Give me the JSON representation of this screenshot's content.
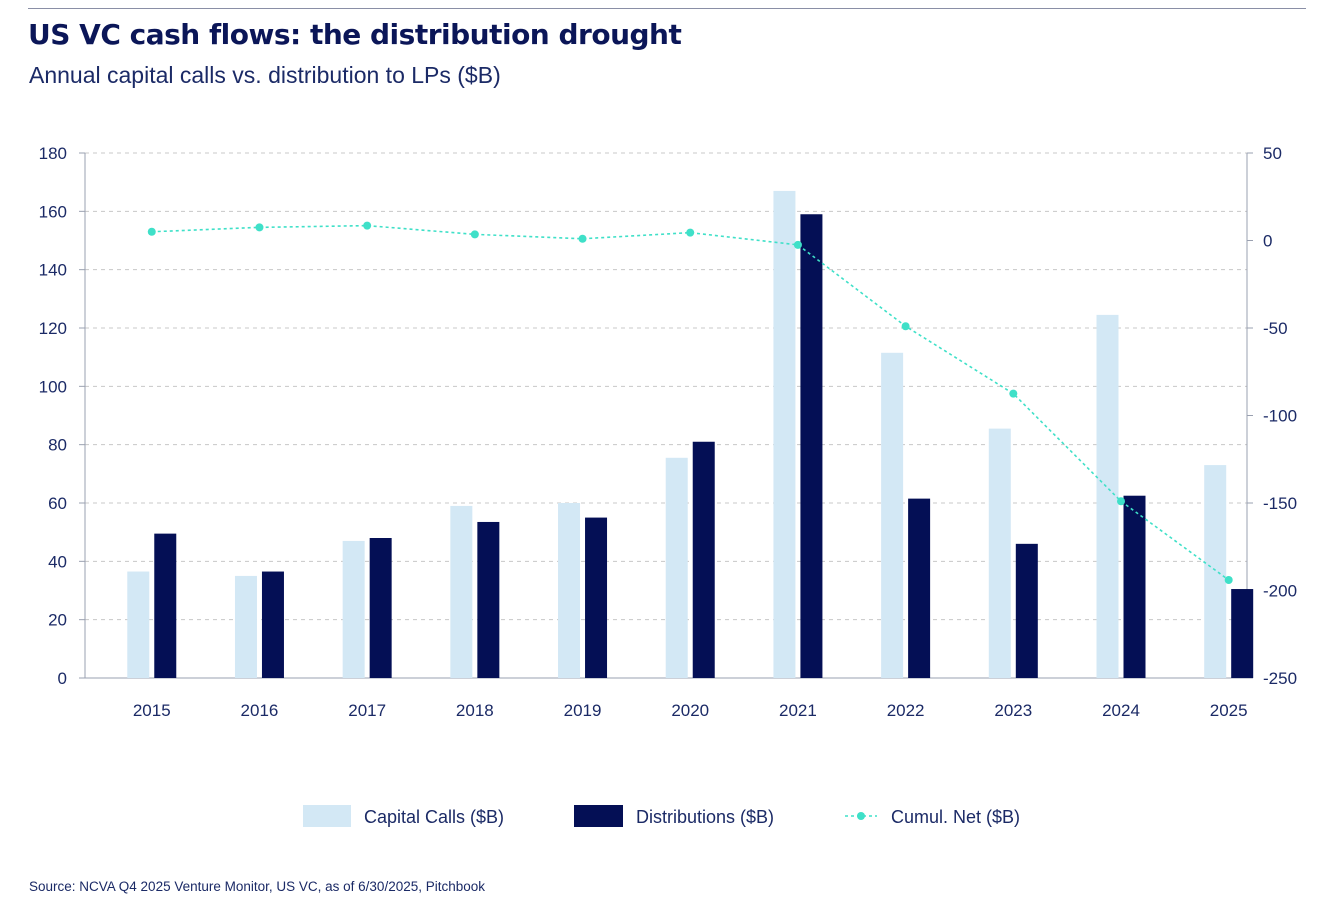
{
  "header": {
    "title": "US VC cash flows: the distribution drought",
    "subtitle": "Annual capital calls vs. distribution to LPs ($B)"
  },
  "footer": {
    "source": "Source: NCVA Q4 2025 Venture Monitor, US VC, as of 6/30/2025, Pitchbook"
  },
  "colors": {
    "capital_calls": "#d3e8f5",
    "distributions": "#040f55",
    "cumul_net": "#3fe0c8",
    "grid": "#c8c8c8",
    "axis": "#9aa0b0"
  },
  "chart_data": {
    "type": "bar",
    "categories": [
      "2015",
      "2016",
      "2017",
      "2018",
      "2019",
      "2020",
      "2021",
      "2022",
      "2023",
      "2024",
      "2025"
    ],
    "series": [
      {
        "name": "Capital Calls ($B)",
        "type": "bar",
        "axis": "left",
        "values": [
          36.5,
          35,
          47,
          59,
          60,
          75.5,
          167,
          111.5,
          85.5,
          124.5,
          73
        ]
      },
      {
        "name": "Distributions ($B)",
        "type": "bar",
        "axis": "left",
        "values": [
          49.5,
          36.5,
          48,
          53.5,
          55,
          81,
          159,
          61.5,
          46,
          62.5,
          30.5
        ]
      },
      {
        "name": "Cumul. Net ($B)",
        "type": "line",
        "axis": "right",
        "values": [
          5,
          7.5,
          8.5,
          3.5,
          1,
          4.5,
          -2.5,
          -49,
          -87.5,
          -149,
          -194
        ]
      }
    ],
    "ylim": [
      0,
      180
    ],
    "yticks": [
      "0",
      "20",
      "40",
      "60",
      "80",
      "100",
      "120",
      "140",
      "160",
      "180"
    ],
    "y2lim": [
      -250,
      50
    ],
    "y2ticks": [
      "-250",
      "-200",
      "-150",
      "-100",
      "-50",
      "0",
      "50"
    ],
    "grid": true,
    "legend": "bottom"
  }
}
